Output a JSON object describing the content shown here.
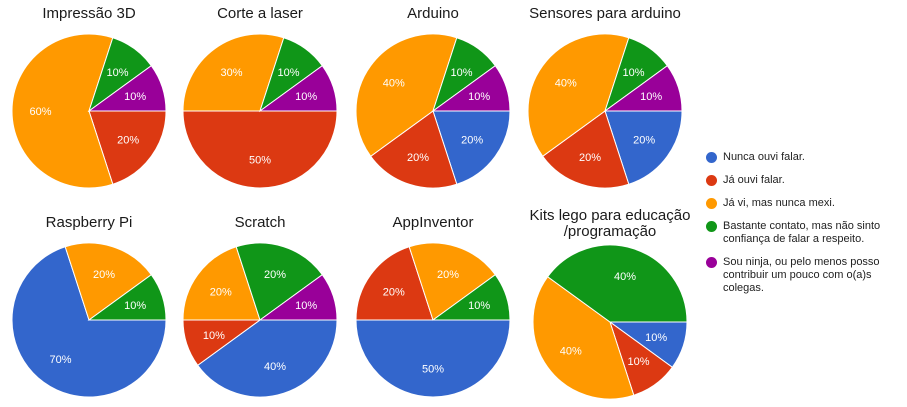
{
  "chart_data": {
    "type": "pie",
    "legend_position": "right",
    "legend": [
      {
        "key": "nunca",
        "label": "Nunca ouvi falar.",
        "color": "#3366cc"
      },
      {
        "key": "ja_ouvi",
        "label": "Já ouvi falar.",
        "color": "#dc3912"
      },
      {
        "key": "ja_vi",
        "label": "Já vi, mas nunca mexi.",
        "color": "#ff9900"
      },
      {
        "key": "bastante",
        "label": "Bastante contato, mas não sinto\nconfiança de falar a respeito.",
        "color": "#109618"
      },
      {
        "key": "ninja",
        "label": "Sou ninja, ou pelo menos posso\ncontribuir um pouco com o(a)s\ncolegas.",
        "color": "#990099"
      }
    ],
    "charts": [
      {
        "title": [
          "Impressão 3D"
        ],
        "values": [
          0,
          20,
          60,
          10,
          10
        ],
        "labels": [
          "",
          "20%",
          "60%",
          "10%",
          "10%"
        ]
      },
      {
        "title": [
          "Corte a laser"
        ],
        "values": [
          0,
          50,
          30,
          10,
          10
        ],
        "labels": [
          "",
          "50%",
          "30%",
          "10%",
          "10%"
        ]
      },
      {
        "title": [
          "Arduino"
        ],
        "values": [
          20,
          20,
          40,
          10,
          10
        ],
        "labels": [
          "20%",
          "20%",
          "40%",
          "10%",
          "10%"
        ]
      },
      {
        "title": [
          "Sensores para arduino"
        ],
        "values": [
          20,
          20,
          40,
          10,
          10
        ],
        "labels": [
          "20%",
          "20%",
          "40%",
          "10%",
          "10%"
        ]
      },
      {
        "title": [
          "Raspberry Pi"
        ],
        "values": [
          70,
          0,
          20,
          10,
          0
        ],
        "labels": [
          "70%",
          "",
          "20%",
          "10%",
          ""
        ]
      },
      {
        "title": [
          "Scratch"
        ],
        "values": [
          40,
          10,
          20,
          20,
          10
        ],
        "labels": [
          "40%",
          "10%",
          "20%",
          "20%",
          "10%"
        ]
      },
      {
        "title": [
          "AppInventor"
        ],
        "values": [
          50,
          20,
          20,
          10,
          0
        ],
        "labels": [
          "50%",
          "20%",
          "20%",
          "10%",
          ""
        ]
      },
      {
        "title": [
          "Kits lego para educação",
          "/programação"
        ],
        "values": [
          10,
          10,
          40,
          40,
          0
        ],
        "labels": [
          "10%",
          "10%",
          "40%",
          "40%",
          ""
        ]
      }
    ]
  }
}
